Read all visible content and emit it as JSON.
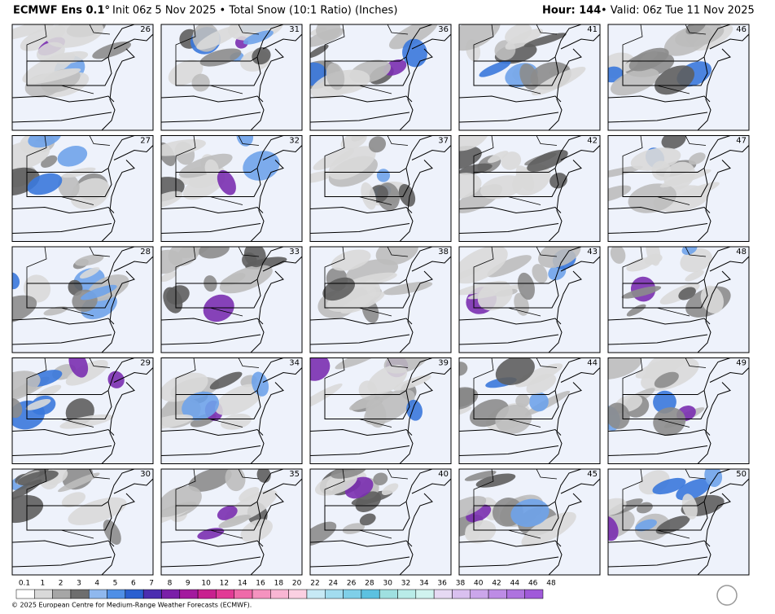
{
  "header": {
    "model": "ECMWF Ens 0.1°",
    "description": "Init 06z 5 Nov 2025 • Total Snow (10:1 Ratio) (Inches)",
    "hour": "Hour: 144",
    "valid": "• Valid: 06z Tue 11 Nov 2025"
  },
  "panels": [
    {
      "member": "26"
    },
    {
      "member": "31"
    },
    {
      "member": "36"
    },
    {
      "member": "41"
    },
    {
      "member": "46"
    },
    {
      "member": "27"
    },
    {
      "member": "32"
    },
    {
      "member": "37"
    },
    {
      "member": "42"
    },
    {
      "member": "47"
    },
    {
      "member": "28"
    },
    {
      "member": "33"
    },
    {
      "member": "38"
    },
    {
      "member": "43"
    },
    {
      "member": "48"
    },
    {
      "member": "29"
    },
    {
      "member": "34"
    },
    {
      "member": "39"
    },
    {
      "member": "44"
    },
    {
      "member": "49"
    },
    {
      "member": "30"
    },
    {
      "member": "35"
    },
    {
      "member": "40"
    },
    {
      "member": "45"
    },
    {
      "member": "50"
    }
  ],
  "colorbar": {
    "labels": [
      0.1,
      1,
      2,
      3,
      4,
      5,
      6,
      7,
      8,
      9,
      10,
      12,
      14,
      16,
      18,
      20,
      22,
      24,
      26,
      28,
      30,
      32,
      34,
      36,
      38,
      40,
      42,
      44,
      46,
      48
    ],
    "colors": [
      "#ffffff",
      "#d9d9d9",
      "#a6a6a6",
      "#6e6e6e",
      "#8fb8ee",
      "#4f8fe6",
      "#2a5fd0",
      "#4b2db0",
      "#7a1fa8",
      "#a3199e",
      "#c8208f",
      "#e23a95",
      "#ef6aa9",
      "#f593bf",
      "#f9b6d3",
      "#fbd0e2",
      "#c7e9f5",
      "#a2dcef",
      "#7fcfe8",
      "#5cc1e0",
      "#9fe0e0",
      "#b9ece8",
      "#d0f3ef",
      "#e6d9f3",
      "#d9c0ef",
      "#cba6ea",
      "#bd8ce5",
      "#ae73df",
      "#a05ad9"
    ]
  },
  "footer": {
    "copyright": "© 2025 European Centre for Medium-Range Weather Forecasts (ECMWF)."
  }
}
